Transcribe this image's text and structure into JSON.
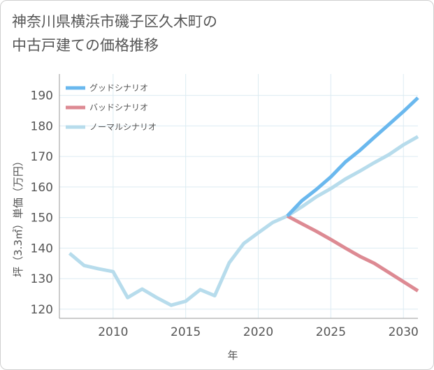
{
  "chart_title": {
    "line1": "神奈川県横浜市磯子区久木町の",
    "line2": "中古戸建ての価格推移"
  },
  "chart_data": {
    "type": "line",
    "title": "神奈川県横浜市磯子区久木町の中古戸建ての価格推移",
    "xlabel": "年",
    "ylabel": "坪（3.3㎡）単価（万円）",
    "xlim": [
      2006.3,
      2031
    ],
    "ylim": [
      117,
      197
    ],
    "xticks": [
      2010,
      2015,
      2020,
      2025,
      2030
    ],
    "yticks": [
      120,
      130,
      140,
      150,
      160,
      170,
      180,
      190
    ],
    "legend_position": "top-left",
    "series": [
      {
        "name": "グッドシナリオ",
        "color": "#6ab8ee",
        "x": [
          2022,
          2023,
          2024,
          2025,
          2026,
          2027,
          2028,
          2029,
          2030,
          2031
        ],
        "y": [
          150.5,
          155.5,
          159.2,
          163.3,
          168.2,
          172.0,
          176.3,
          180.5,
          184.7,
          189.2
        ]
      },
      {
        "name": "バッドシナリオ",
        "color": "#dd8a93",
        "x": [
          2022,
          2023,
          2024,
          2025,
          2026,
          2027,
          2028,
          2029,
          2030,
          2031
        ],
        "y": [
          150.5,
          148.0,
          145.5,
          142.8,
          140.0,
          137.3,
          135.0,
          132.0,
          129.0,
          126.0
        ]
      },
      {
        "name": "ノーマルシナリオ",
        "color": "#b7dcec",
        "x": [
          2007,
          2008,
          2009,
          2010,
          2011,
          2012,
          2013,
          2014,
          2015,
          2016,
          2017,
          2018,
          2019,
          2020,
          2021,
          2022,
          2023,
          2024,
          2025,
          2026,
          2027,
          2028,
          2029,
          2030,
          2031
        ],
        "y": [
          138.3,
          134.3,
          133.2,
          132.3,
          123.8,
          126.6,
          123.8,
          121.3,
          122.6,
          126.4,
          124.4,
          135.2,
          141.5,
          145.0,
          148.4,
          150.5,
          153.5,
          156.8,
          159.5,
          162.6,
          165.2,
          168.0,
          170.6,
          173.8,
          176.5
        ]
      }
    ]
  }
}
